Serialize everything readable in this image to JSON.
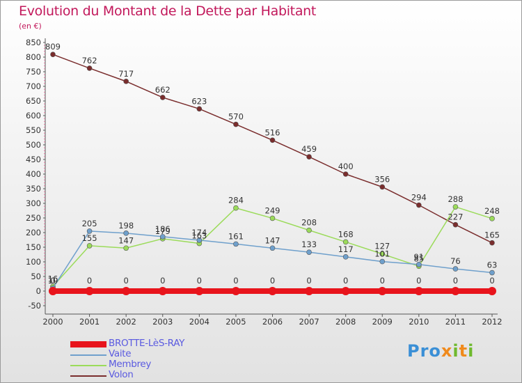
{
  "title": "Evolution du Montant de la Dette par Habitant",
  "unit": "(en €)",
  "logo": {
    "text": "Proxiti",
    "colors": [
      "#3a8fd6",
      "#f08a1c",
      "#6fb92e"
    ]
  },
  "chart_data": {
    "type": "line",
    "title": "Evolution du Montant de la Dette par Habitant",
    "ylabel": "(en €)",
    "xlabel": "",
    "x": [
      2000,
      2001,
      2002,
      2003,
      2004,
      2005,
      2006,
      2007,
      2008,
      2009,
      2010,
      2011,
      2012
    ],
    "ylim": [
      -50,
      850
    ],
    "yticks": [
      -50,
      0,
      50,
      100,
      150,
      200,
      250,
      300,
      350,
      400,
      450,
      500,
      550,
      600,
      650,
      700,
      750,
      800,
      850
    ],
    "grid": false,
    "legend_position": "bottom-left",
    "series": [
      {
        "name": "BROTTE-LèS-RAY",
        "color": "#e8141c",
        "legend_text_color": "#5a5ae0",
        "values": [
          0,
          0,
          0,
          0,
          0,
          0,
          0,
          0,
          0,
          0,
          0,
          0,
          0
        ],
        "labels": [
          "0",
          "0",
          "0",
          "0",
          "0",
          "0",
          "0",
          "0",
          "0",
          "0",
          "0",
          "0",
          "0"
        ]
      },
      {
        "name": "Vaite",
        "color": "#6fa0cc",
        "legend_text_color": "#5a5ae0",
        "values": [
          10,
          205,
          198,
          186,
          174,
          161,
          147,
          133,
          117,
          101,
          91,
          76,
          63
        ],
        "labels": [
          "10",
          "205",
          "198",
          "186",
          "174",
          "161",
          "147",
          "133",
          "117",
          "101",
          "91",
          "76",
          "63"
        ]
      },
      {
        "name": "Membrey",
        "color": "#9bdb5a",
        "legend_text_color": "#5a5ae0",
        "values": [
          16,
          155,
          147,
          179,
          163,
          284,
          249,
          208,
          168,
          127,
          85,
          288,
          248
        ],
        "labels": [
          "16",
          "155",
          "147",
          "179",
          "163",
          "284",
          "249",
          "208",
          "168",
          "127",
          "85",
          "288",
          "248"
        ]
      },
      {
        "name": "Volon",
        "color": "#7a2d2d",
        "legend_text_color": "#5a5ae0",
        "values": [
          809,
          762,
          717,
          662,
          623,
          570,
          516,
          459,
          400,
          356,
          294,
          227,
          165
        ],
        "labels": [
          "809",
          "762",
          "717",
          "662",
          "623",
          "570",
          "516",
          "459",
          "400",
          "356",
          "294",
          "227",
          "165"
        ]
      }
    ]
  }
}
